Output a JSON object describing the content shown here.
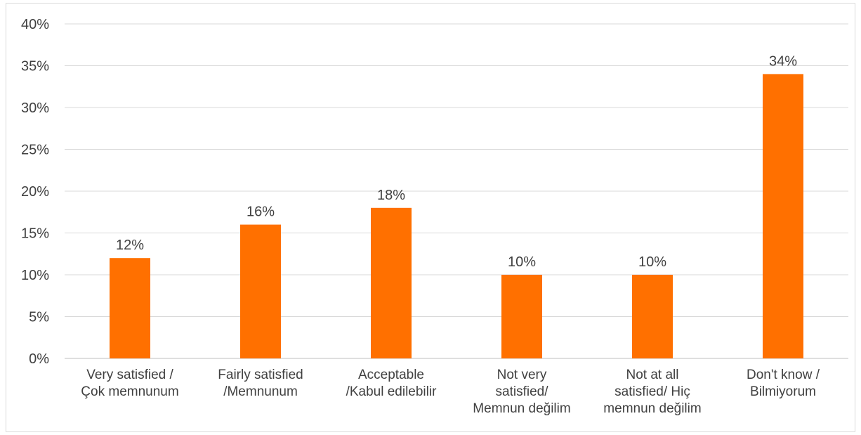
{
  "chart_data": {
    "type": "bar",
    "title": "",
    "xlabel": "",
    "ylabel": "",
    "categories": [
      "Very satisfied / Çok memnunum",
      "Fairly satisfied /Memnunum",
      "Acceptable /Kabul edilebilir",
      "Not very satisfied/ Memnun değilim",
      "Not at all satisfied/ Hiç memnun değilim",
      "Don't know / Bilmiyorum"
    ],
    "category_lines": [
      [
        "Very satisfied /",
        "Çok memnunum"
      ],
      [
        "Fairly satisfied",
        "/Memnunum"
      ],
      [
        "Acceptable",
        "/Kabul edilebilir"
      ],
      [
        "Not very",
        "satisfied/",
        "Memnun değilim"
      ],
      [
        "Not at all",
        "satisfied/ Hiç",
        "memnun değilim"
      ],
      [
        "Don't know /",
        "Bilmiyorum"
      ]
    ],
    "values": [
      12,
      16,
      18,
      10,
      10,
      34
    ],
    "data_labels": [
      "12%",
      "16%",
      "18%",
      "10%",
      "10%",
      "34%"
    ],
    "ylim": [
      0,
      40
    ],
    "yticks": [
      0,
      5,
      10,
      15,
      20,
      25,
      30,
      35,
      40
    ],
    "ytick_labels": [
      "0%",
      "5%",
      "10%",
      "15%",
      "20%",
      "25%",
      "30%",
      "35%",
      "40%"
    ],
    "grid": true,
    "legend": "none",
    "bar_color": "#ff7000"
  }
}
